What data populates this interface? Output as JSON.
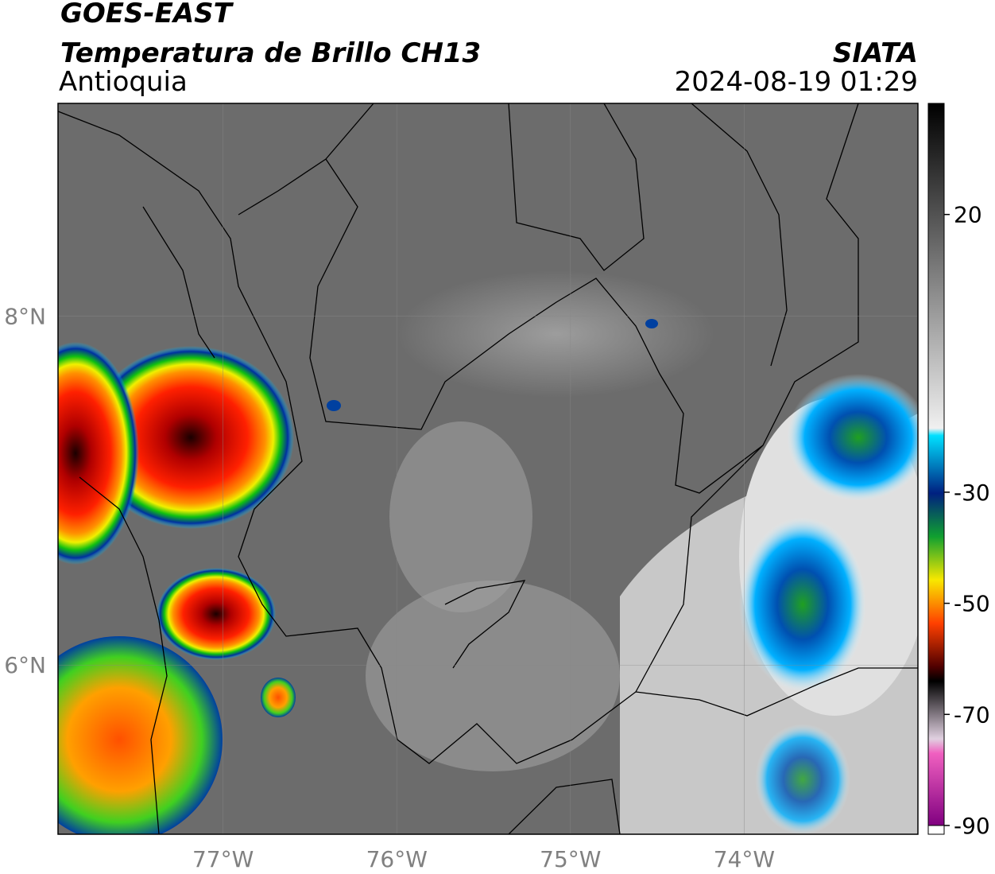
{
  "header": {
    "title": "GOES-EAST",
    "subtitle": "Temperatura de Brillo CH13",
    "region": "Antioquia",
    "source": "SIATA",
    "datetime": "2024-08-19 01:29"
  },
  "map": {
    "lon_range": [
      -77.95,
      -73.0
    ],
    "lat_range": [
      5.03,
      9.22
    ],
    "lon_ticks": [
      {
        "value": -77,
        "label": "77°W"
      },
      {
        "value": -76,
        "label": "76°W"
      },
      {
        "value": -75,
        "label": "75°W"
      },
      {
        "value": -74,
        "label": "74°W"
      }
    ],
    "lat_ticks": [
      {
        "value": 8,
        "label": "8°N"
      },
      {
        "value": 6,
        "label": "6°N"
      }
    ]
  },
  "colorbar": {
    "range": [
      -90,
      40
    ],
    "ticks": [
      20,
      -30,
      -50,
      -70,
      -90
    ]
  }
}
